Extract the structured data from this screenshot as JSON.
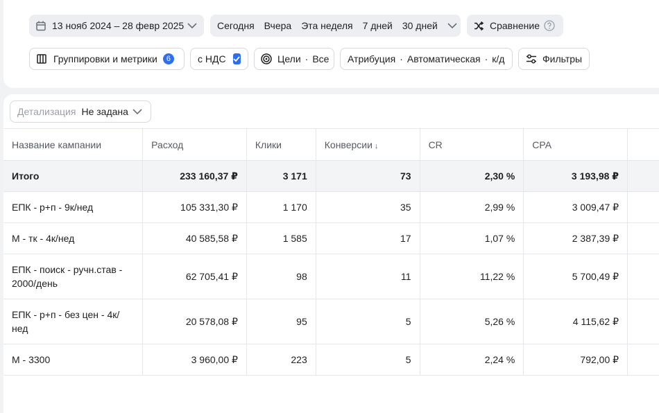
{
  "toolbar": {
    "date_range": "13 нояб 2024 – 28 февр 2025",
    "periods": [
      "Сегодня",
      "Вчера",
      "Эта неделя",
      "7 дней",
      "30 дней"
    ],
    "compare_label": "Сравнение",
    "groupings_label": "Группировки и метрики",
    "groupings_count": "6",
    "vat_label": "с НДС",
    "vat_checked": true,
    "goals_label": "Цели",
    "goals_value": "Все",
    "attribution_label": "Атрибуция",
    "attribution_value": "Автоматическая",
    "attribution_suffix": "к/д",
    "filters_label": "Фильтры"
  },
  "detail": {
    "label": "Детализация",
    "value": "Не задана"
  },
  "table": {
    "columns": [
      "Название кампании",
      "Расход",
      "Клики",
      "Конверсии",
      "CR",
      "CPA"
    ],
    "sort_indicator": "↓",
    "total": {
      "name": "Итого",
      "spend": "233 160,37 ₽",
      "clicks": "3 171",
      "conversions": "73",
      "cr": "2,30 %",
      "cpa": "3 193,98 ₽"
    },
    "rows": [
      {
        "name": "ЕПК - р+п - 9к/нед",
        "spend": "105 331,30 ₽",
        "clicks": "1 170",
        "conversions": "35",
        "cr": "2,99 %",
        "cpa": "3 009,47 ₽"
      },
      {
        "name": "М - тк - 4к/нед",
        "spend": "40 585,58 ₽",
        "clicks": "1 585",
        "conversions": "17",
        "cr": "1,07 %",
        "cpa": "2 387,39 ₽"
      },
      {
        "name": "ЕПК - поиск - ручн.став - 2000/день",
        "spend": "62 705,41 ₽",
        "clicks": "98",
        "conversions": "11",
        "cr": "11,22 %",
        "cpa": "5 700,49 ₽"
      },
      {
        "name": "ЕПК - р+п - без цен - 4к/нед",
        "spend": "20 578,08 ₽",
        "clicks": "95",
        "conversions": "5",
        "cr": "5,26 %",
        "cpa": "4 115,62 ₽"
      },
      {
        "name": "М - 3300",
        "spend": "3 960,00 ₽",
        "clicks": "223",
        "conversions": "5",
        "cr": "2,24 %",
        "cpa": "792,00 ₽"
      }
    ]
  },
  "colors": {
    "accent": "#2f6fed",
    "background": "#f1f2f4",
    "chip_grey": "#eceef1",
    "total_row": "#f3f4f6"
  },
  "icons": [
    "calendar-icon",
    "chevron-down-icon",
    "shuffle-icon",
    "help-icon",
    "columns-icon",
    "check-icon",
    "target-icon",
    "sliders-icon"
  ]
}
